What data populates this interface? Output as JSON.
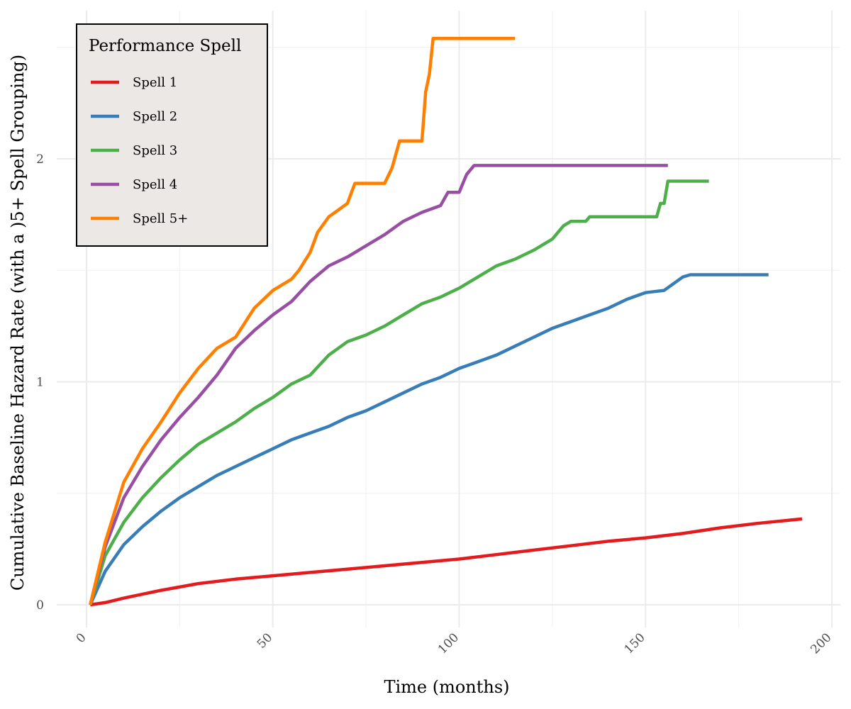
{
  "chart_data": {
    "type": "line",
    "title": "",
    "xlabel": "Time (months)",
    "ylabel": "Cumulative Baseline Hazard Rate (with a )5+ Spell Grouping)",
    "xlim": [
      0,
      200
    ],
    "ylim": [
      0,
      2.6
    ],
    "x_ticks": [
      0,
      50,
      100,
      150,
      200
    ],
    "x_tick_labels": [
      "0",
      "50",
      "100",
      "150",
      "200"
    ],
    "y_ticks": [
      0,
      1,
      2
    ],
    "y_tick_labels": [
      "0",
      "1",
      "2"
    ],
    "grid": true,
    "legend": {
      "title": "Performance Spell",
      "position": "top-left"
    },
    "series": [
      {
        "name": "Spell 1",
        "color": "#e41a1c",
        "x": [
          1,
          5,
          10,
          20,
          30,
          40,
          50,
          60,
          70,
          80,
          90,
          100,
          110,
          120,
          130,
          140,
          150,
          160,
          170,
          180,
          192
        ],
        "y": [
          0,
          0.01,
          0.03,
          0.065,
          0.095,
          0.115,
          0.13,
          0.145,
          0.16,
          0.175,
          0.19,
          0.205,
          0.225,
          0.245,
          0.265,
          0.285,
          0.3,
          0.32,
          0.345,
          0.365,
          0.385
        ]
      },
      {
        "name": "Spell 2",
        "color": "#377eb8",
        "x": [
          1,
          5,
          10,
          15,
          20,
          25,
          30,
          35,
          40,
          45,
          50,
          55,
          60,
          65,
          70,
          75,
          80,
          85,
          90,
          95,
          100,
          105,
          110,
          115,
          120,
          125,
          130,
          135,
          140,
          145,
          150,
          155,
          160,
          162,
          183
        ],
        "y": [
          0,
          0.15,
          0.27,
          0.35,
          0.42,
          0.48,
          0.53,
          0.58,
          0.62,
          0.66,
          0.7,
          0.74,
          0.77,
          0.8,
          0.84,
          0.87,
          0.91,
          0.95,
          0.99,
          1.02,
          1.06,
          1.09,
          1.12,
          1.16,
          1.2,
          1.24,
          1.27,
          1.3,
          1.33,
          1.37,
          1.4,
          1.41,
          1.47,
          1.48,
          1.48
        ]
      },
      {
        "name": "Spell 3",
        "color": "#4daf4a",
        "x": [
          1,
          5,
          10,
          15,
          20,
          25,
          30,
          35,
          40,
          45,
          50,
          55,
          60,
          65,
          70,
          75,
          80,
          85,
          90,
          95,
          100,
          105,
          110,
          115,
          120,
          125,
          128,
          130,
          134,
          135,
          145,
          153,
          154,
          155,
          156,
          167
        ],
        "y": [
          0,
          0.22,
          0.37,
          0.48,
          0.57,
          0.65,
          0.72,
          0.77,
          0.82,
          0.88,
          0.93,
          0.99,
          1.03,
          1.12,
          1.18,
          1.21,
          1.25,
          1.3,
          1.35,
          1.38,
          1.42,
          1.47,
          1.52,
          1.55,
          1.59,
          1.64,
          1.7,
          1.72,
          1.72,
          1.74,
          1.74,
          1.74,
          1.8,
          1.8,
          1.9,
          1.9
        ]
      },
      {
        "name": "Spell 4",
        "color": "#984ea3",
        "x": [
          1,
          5,
          10,
          15,
          20,
          25,
          30,
          35,
          40,
          45,
          50,
          55,
          60,
          65,
          70,
          75,
          80,
          85,
          90,
          95,
          97,
          100,
          102,
          104,
          110,
          120,
          130,
          140,
          150,
          156
        ],
        "y": [
          0,
          0.26,
          0.48,
          0.62,
          0.74,
          0.84,
          0.93,
          1.03,
          1.15,
          1.23,
          1.3,
          1.36,
          1.45,
          1.52,
          1.56,
          1.61,
          1.66,
          1.72,
          1.76,
          1.79,
          1.85,
          1.85,
          1.93,
          1.97,
          1.97,
          1.97,
          1.97,
          1.97,
          1.97,
          1.97
        ]
      },
      {
        "name": "Spell 5+",
        "color": "#ff7f00",
        "x": [
          1,
          5,
          10,
          15,
          20,
          25,
          30,
          35,
          40,
          45,
          50,
          55,
          57,
          60,
          62,
          65,
          70,
          72,
          80,
          82,
          84,
          90,
          91,
          92,
          93,
          115
        ],
        "y": [
          0,
          0.28,
          0.55,
          0.7,
          0.82,
          0.95,
          1.06,
          1.15,
          1.2,
          1.33,
          1.41,
          1.46,
          1.5,
          1.58,
          1.67,
          1.74,
          1.8,
          1.89,
          1.89,
          1.96,
          2.08,
          2.08,
          2.3,
          2.38,
          2.54,
          2.54
        ]
      }
    ]
  }
}
